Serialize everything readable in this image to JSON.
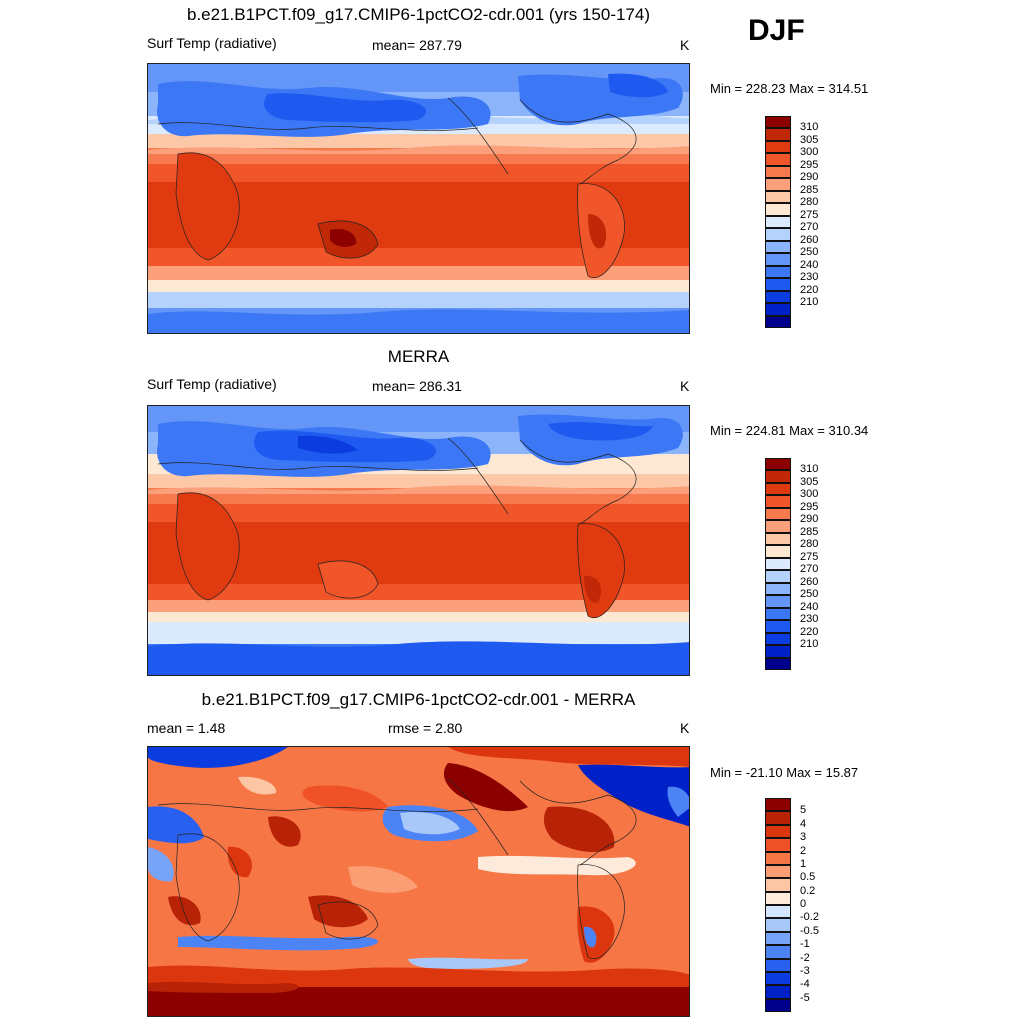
{
  "season": "DJF",
  "colors": {
    "temp": [
      "#00008c",
      "#0020c8",
      "#0a3ce0",
      "#1e5af0",
      "#3c78f5",
      "#6496f8",
      "#8cb4fa",
      "#b4d2fc",
      "#dceafe",
      "#fde8d4",
      "#fcc8a8",
      "#fba07a",
      "#f77a4e",
      "#f0562a",
      "#e03a10",
      "#c02808",
      "#8c0000"
    ],
    "diff": [
      "#00008c",
      "#0020c8",
      "#0a3ce0",
      "#2860f0",
      "#4c84f6",
      "#78a4f8",
      "#a8c8fa",
      "#d4e6fe",
      "#fdeadb",
      "#fcc6a4",
      "#fb9e74",
      "#f77646",
      "#ef5226",
      "#dc360e",
      "#b82206",
      "#8c0000"
    ]
  },
  "panels": [
    {
      "title": "b.e21.B1PCT.f09_g17.CMIP6-1pctCO2-cdr.001 (yrs 150-174)",
      "left_label": "Surf Temp (radiative)",
      "center_label": "mean= 287.79",
      "units": "K",
      "minmax": "Min = 228.23 Max = 314.51",
      "levels": [
        "310",
        "305",
        "300",
        "295",
        "290",
        "285",
        "280",
        "275",
        "270",
        "260",
        "250",
        "240",
        "230",
        "220",
        "210"
      ]
    },
    {
      "title": "MERRA",
      "left_label": "Surf Temp (radiative)",
      "center_label": "mean= 286.31",
      "units": "K",
      "minmax": "Min = 224.81 Max = 310.34",
      "levels": [
        "310",
        "305",
        "300",
        "295",
        "290",
        "285",
        "280",
        "275",
        "270",
        "260",
        "250",
        "240",
        "230",
        "220",
        "210"
      ]
    },
    {
      "title": "b.e21.B1PCT.f09_g17.CMIP6-1pctCO2-cdr.001 - MERRA",
      "left_label": "mean =   1.48",
      "center_label": "rmse =   2.80",
      "units": "K",
      "minmax": "Min = -21.10 Max =  15.87",
      "levels": [
        "5",
        "4",
        "3",
        "2",
        "1",
        "0.5",
        "0.2",
        "0",
        "-0.2",
        "-0.5",
        "-1",
        "-2",
        "-3",
        "-4",
        "-5"
      ]
    }
  ]
}
